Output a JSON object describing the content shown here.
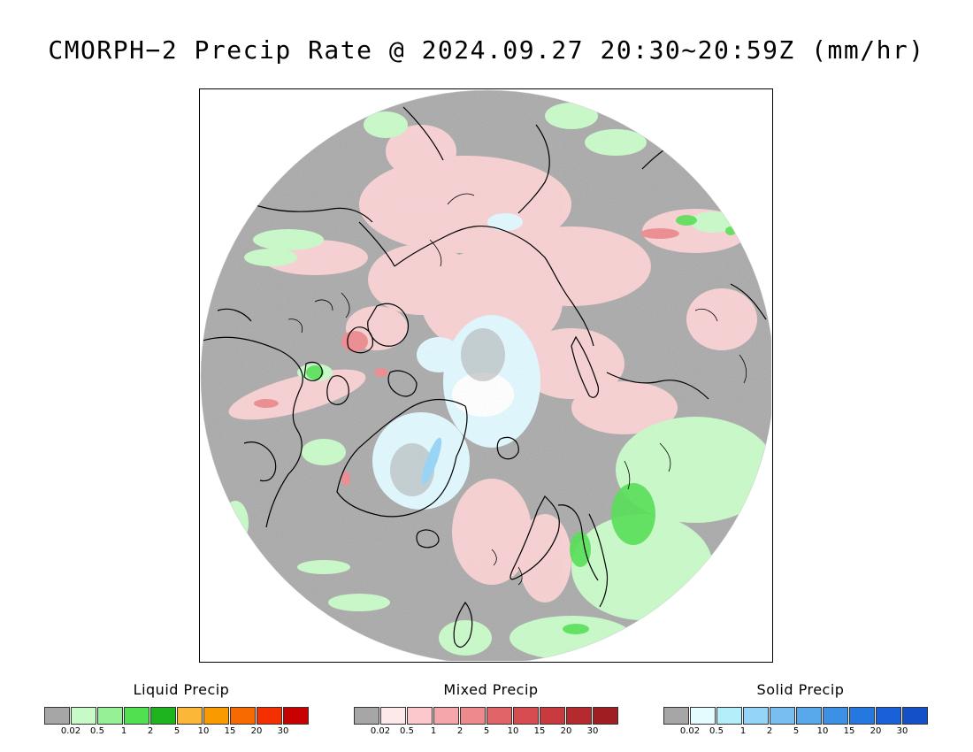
{
  "title": "CMORPH−2 Precip Rate @ 2024.09.27 20:30~20:59Z (mm/hr)",
  "colors": {
    "background": "#a9a9a9",
    "outside_disk": "#ffffff",
    "coastline": "#000000"
  },
  "legends": [
    {
      "id": "liquid",
      "title": "Liquid Precip",
      "colors": [
        "#a6a6a6",
        "#c8fac8",
        "#96f096",
        "#50e050",
        "#1eb41e",
        "#fbb838",
        "#f89a00",
        "#f66a00",
        "#f53000",
        "#c80000"
      ],
      "ticks": [
        "0.02",
        "0.5",
        "1",
        "2",
        "5",
        "10",
        "15",
        "20",
        "30"
      ]
    },
    {
      "id": "mixed",
      "title": "Mixed Precip",
      "colors": [
        "#a6a6a6",
        "#fde8ea",
        "#fcc8cc",
        "#f4a6aa",
        "#ec8a8e",
        "#e06468",
        "#d64c50",
        "#c83a3e",
        "#b42a2e",
        "#a01e22"
      ],
      "ticks": [
        "0.02",
        "0.5",
        "1",
        "2",
        "5",
        "10",
        "15",
        "20",
        "30"
      ]
    },
    {
      "id": "solid",
      "title": "Solid Precip",
      "colors": [
        "#a6a6a6",
        "#e4fcfe",
        "#b4eefa",
        "#94d4f8",
        "#78bef0",
        "#58a8ec",
        "#3c90e6",
        "#2478e0",
        "#1a60d8",
        "#1450c8"
      ],
      "ticks": [
        "0.02",
        "0.5",
        "1",
        "2",
        "5",
        "10",
        "15",
        "20",
        "30"
      ]
    }
  ]
}
